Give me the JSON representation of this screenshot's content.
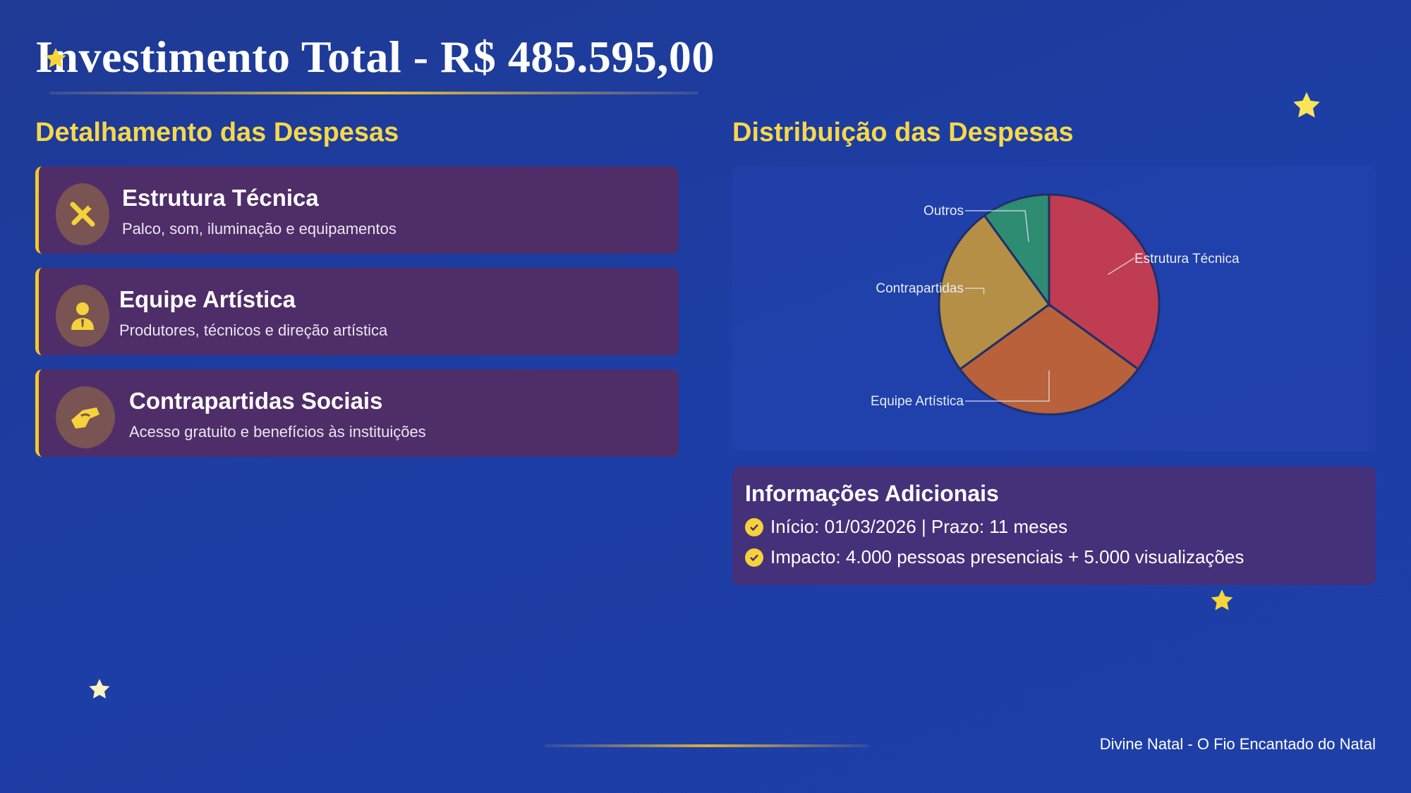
{
  "header": {
    "title": "Investimento Total - R$ 485.595,00"
  },
  "left": {
    "heading": "Detalhamento das Despesas",
    "cards": [
      {
        "icon": "tools-icon",
        "title": "Estrutura Técnica",
        "desc": "Palco, som, iluminação e equipamentos"
      },
      {
        "icon": "user-tie-icon",
        "title": "Equipe Artística",
        "desc": "Produtores, técnicos e direção artística"
      },
      {
        "icon": "handshake-icon",
        "title": "Contrapartidas Sociais",
        "desc": "Acesso gratuito e benefícios às instituições"
      }
    ]
  },
  "right": {
    "heading": "Distribuição das Despesas",
    "info": {
      "title": "Informações Adicionais",
      "items": [
        "Início: 01/03/2026 | Prazo: 11 meses",
        "Impacto: 4.000 pessoas presenciais + 5.000 visualizações"
      ]
    }
  },
  "chart_data": {
    "type": "pie",
    "categories": [
      "Estrutura Técnica",
      "Equipe Artística",
      "Contrapartidas",
      "Outros"
    ],
    "values": [
      35,
      30,
      25,
      10
    ],
    "colors": [
      "#c03c52",
      "#b8613a",
      "#b58f45",
      "#2e8c72"
    ]
  },
  "footer": {
    "text": "Divine Natal - O Fio Encantado do Natal"
  },
  "colors": {
    "accent": "#f6d84a",
    "card_bg": "#4f2d68",
    "background": "#1e3ea6"
  }
}
